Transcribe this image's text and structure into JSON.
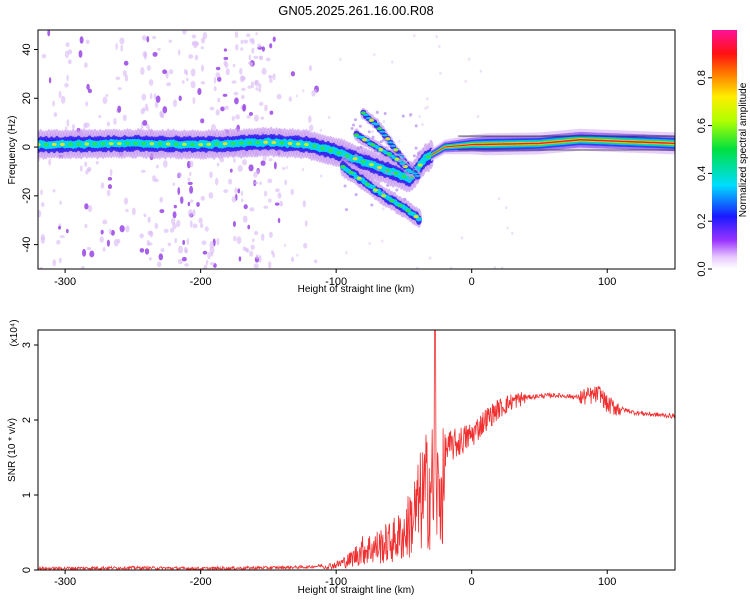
{
  "title": "GN05.2025.261.16.00.R08",
  "chart_data": [
    {
      "type": "heatmap",
      "xlabel": "Height of straight line (km)",
      "ylabel": "Frequency (Hz)",
      "xlim": [
        -320,
        150
      ],
      "ylim": [
        -50,
        48
      ],
      "xticks": [
        -300,
        -200,
        -100,
        0,
        100
      ],
      "yticks": [
        -40,
        -20,
        0,
        20,
        40
      ],
      "colorbar": {
        "label": "Normalized spectral amplitude",
        "range": [
          0.0,
          1.0
        ],
        "ticks": [
          0.0,
          0.2,
          0.4,
          0.6,
          0.8
        ],
        "colormap": "rainbow (magenta-blue-cyan-green-yellow-red-pink)"
      },
      "features": {
        "main_band": [
          [
            -320,
            1
          ],
          [
            -250,
            1.5
          ],
          [
            -200,
            1
          ],
          [
            -150,
            2
          ],
          [
            -120,
            1
          ],
          [
            -100,
            -2
          ],
          [
            -80,
            -6
          ],
          [
            -60,
            -10
          ],
          [
            -45,
            -13
          ],
          [
            -35,
            -5
          ],
          [
            -20,
            0
          ],
          [
            0,
            1
          ],
          [
            50,
            1.5
          ],
          [
            80,
            3
          ],
          [
            150,
            1.5
          ]
        ],
        "branch_low": [
          [
            -95,
            -8
          ],
          [
            -80,
            -14
          ],
          [
            -65,
            -20
          ],
          [
            -50,
            -25
          ],
          [
            -42,
            -28
          ],
          [
            -38,
            -30
          ]
        ],
        "branch_high": [
          [
            -80,
            14
          ],
          [
            -70,
            9
          ],
          [
            -60,
            2
          ],
          [
            -50,
            -6
          ],
          [
            -40,
            -12
          ]
        ],
        "branch_mid": [
          [
            -85,
            5
          ],
          [
            -70,
            0
          ],
          [
            -55,
            -5
          ],
          [
            -45,
            -10
          ]
        ],
        "noise_region_x": [
          -320,
          -140
        ]
      }
    },
    {
      "type": "line",
      "xlabel": "Height of straight line (km)",
      "ylabel": "SNR (10 * v/v)",
      "yscale_label": "(x10⁴)",
      "xlim": [
        -320,
        150
      ],
      "ylim": [
        0,
        3.2
      ],
      "xticks": [
        -300,
        -200,
        -100,
        0,
        100
      ],
      "yticks": [
        0,
        1,
        2,
        3
      ],
      "color": "#f03030",
      "envelope": {
        "x": [
          -320,
          -250,
          -200,
          -150,
          -120,
          -110,
          -100,
          -90,
          -80,
          -70,
          -60,
          -50,
          -40,
          -35,
          -30,
          -25,
          -20,
          -10,
          0,
          10,
          20,
          30,
          40,
          50,
          60,
          70,
          80,
          90,
          95,
          100,
          110,
          120,
          130,
          150
        ],
        "y": [
          0.02,
          0.03,
          0.02,
          0.03,
          0.04,
          0.06,
          0.1,
          0.2,
          0.4,
          0.45,
          0.55,
          0.7,
          1.2,
          1.5,
          1.7,
          1.5,
          1.6,
          1.7,
          1.8,
          2.0,
          2.15,
          2.25,
          2.3,
          2.32,
          2.33,
          2.32,
          2.3,
          2.33,
          2.35,
          2.2,
          2.15,
          2.1,
          2.08,
          2.05
        ]
      },
      "peak": {
        "x": -27,
        "y": 3.2
      }
    }
  ]
}
